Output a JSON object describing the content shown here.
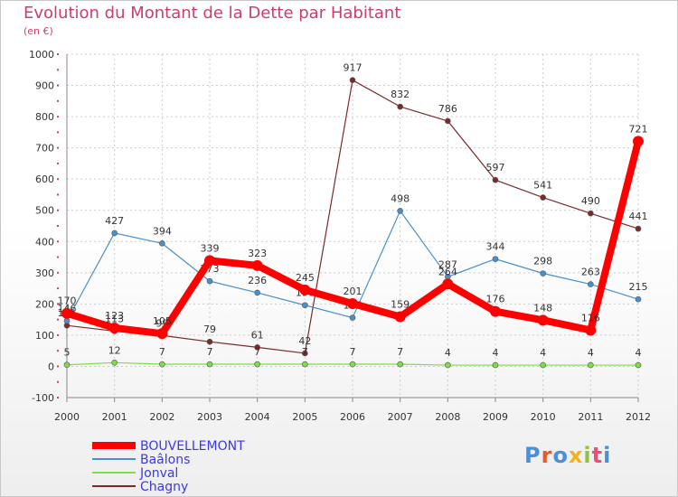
{
  "title": "Evolution du Montant de la Dette par Habitant",
  "unit": "(en €)",
  "logo": {
    "text": "Proxiti",
    "colors": [
      "#4a8fd8",
      "#e85a2a",
      "#4a8fd8",
      "#f2b21c",
      "#8cc63f",
      "#e8507a",
      "#4a8fd8"
    ]
  },
  "chart_data": {
    "type": "line",
    "x": [
      "2000",
      "2001",
      "2002",
      "2003",
      "2004",
      "2005",
      "2006",
      "2007",
      "2008",
      "2009",
      "2010",
      "2011",
      "2012"
    ],
    "ylim": [
      -100,
      1000
    ],
    "yticks": [
      "1000",
      "900",
      "800",
      "700",
      "600",
      "500",
      "400",
      "300",
      "200",
      "100",
      "0",
      "-100"
    ],
    "grid": true,
    "legend_position": "bottom-left",
    "series": [
      {
        "name": "BOUVELLEMONT",
        "color": "#ff0000",
        "values": [
          170,
          123,
          105,
          339,
          323,
          245,
          201,
          159,
          264,
          176,
          148,
          116,
          721
        ],
        "labels": [
          "170",
          "123",
          "105",
          "339",
          "323",
          "245",
          "201",
          "159",
          "264",
          "176",
          "148",
          "116",
          "721"
        ]
      },
      {
        "name": "Baâlons",
        "color": "#4a90c8",
        "values": [
          146,
          427,
          394,
          273,
          236,
          196,
          156,
          498,
          287,
          344,
          298,
          263,
          215
        ],
        "labels": [
          "146",
          "427",
          "394",
          "273",
          "236",
          "196",
          "156",
          "498",
          "287",
          "344",
          "298",
          "263",
          "215"
        ]
      },
      {
        "name": "Jonval",
        "color": "#7ddd4a",
        "values": [
          5,
          12,
          7,
          7,
          7,
          7,
          7,
          7,
          4,
          4,
          4,
          4,
          4
        ],
        "labels": [
          "5",
          "12",
          "7",
          "7",
          "7",
          "7",
          "7",
          "7",
          "4",
          "4",
          "4",
          "4",
          "4"
        ]
      },
      {
        "name": "Chagny",
        "color": "#7a2a2a",
        "values": [
          131,
          113,
          99,
          79,
          61,
          42,
          917,
          832,
          786,
          597,
          541,
          490,
          441
        ],
        "labels": [
          "131",
          "113",
          "99",
          "79",
          "61",
          "42",
          "917",
          "832",
          "786",
          "597",
          "541",
          "490",
          "441"
        ]
      }
    ]
  }
}
